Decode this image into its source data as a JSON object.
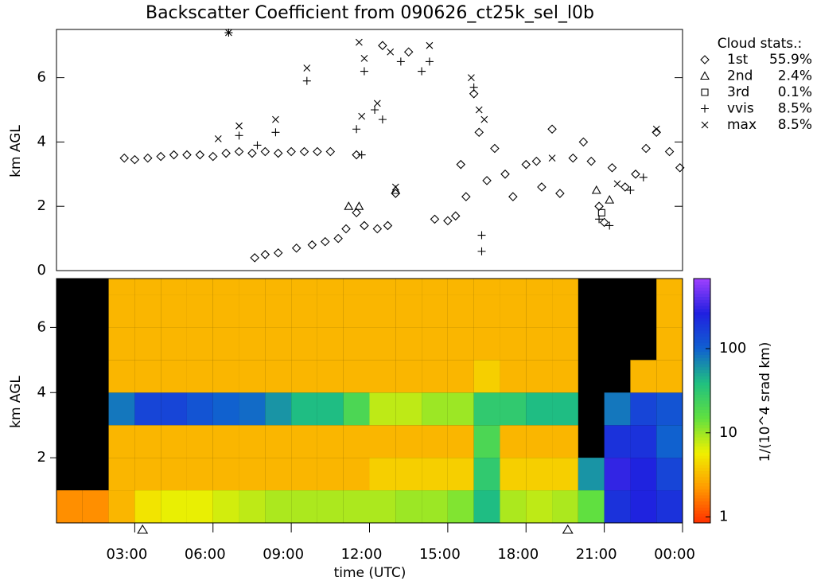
{
  "chart_data": [
    {
      "type": "scatter",
      "title": "Backscatter Coefficient from 090626_ct25k_sel_l0b",
      "ylabel": "km AGL",
      "legend_title": "Cloud stats.:",
      "xlim": [
        0,
        24
      ],
      "ylim": [
        0,
        7.5
      ],
      "yticks": [
        0,
        2,
        4,
        6
      ],
      "series": [
        {
          "name": "1st",
          "stat": "55.9%",
          "marker": "diamond",
          "x": [
            2.6,
            3,
            3.5,
            4,
            4.5,
            5,
            5.5,
            6,
            6.5,
            7,
            7.5,
            8,
            8.5,
            9,
            9.5,
            10,
            10.5,
            11.5,
            7.6,
            8,
            8.5,
            9.2,
            9.8,
            10.3,
            10.8,
            11.1,
            11.5,
            11.8,
            12.3,
            12.7,
            13,
            14.5,
            15,
            15.3,
            15.5,
            15.7,
            16,
            16.2,
            16.5,
            16.8,
            17.2,
            17.5,
            18,
            18.4,
            18.6,
            19,
            19.3,
            19.8,
            20.2,
            20.5,
            20.8,
            21,
            21.3,
            21.8,
            22.2,
            22.6,
            23,
            23.5,
            23.9,
            12.5,
            13.5
          ],
          "y": [
            3.5,
            3.45,
            3.5,
            3.55,
            3.6,
            3.6,
            3.6,
            3.55,
            3.65,
            3.7,
            3.65,
            3.7,
            3.65,
            3.7,
            3.7,
            3.7,
            3.7,
            3.6,
            0.4,
            0.5,
            0.55,
            0.7,
            0.8,
            0.9,
            1.0,
            1.3,
            1.8,
            1.4,
            1.3,
            1.4,
            2.4,
            1.6,
            1.55,
            1.7,
            3.3,
            2.3,
            5.5,
            4.3,
            2.8,
            3.8,
            3.0,
            2.3,
            3.3,
            3.4,
            2.6,
            4.4,
            2.4,
            3.5,
            4.0,
            3.4,
            2.0,
            1.5,
            3.2,
            2.6,
            3.0,
            3.8,
            4.3,
            3.7,
            3.2,
            7.0,
            6.8
          ]
        },
        {
          "name": "2nd",
          "stat": "2.4%",
          "marker": "triangle",
          "x": [
            11.2,
            11.6,
            20.7,
            21.2,
            13
          ],
          "y": [
            2.0,
            2.0,
            2.5,
            2.2,
            2.5
          ]
        },
        {
          "name": "3rd",
          "stat": "0.1%",
          "marker": "square",
          "x": [
            20.9
          ],
          "y": [
            1.8
          ]
        },
        {
          "name": "vvis",
          "stat": "8.5%",
          "marker": "plus",
          "x": [
            6.6,
            9.6,
            11.5,
            11.8,
            12.2,
            12.5,
            13.2,
            14,
            14.3,
            16,
            16.3,
            16.3,
            7,
            8.4,
            21.2,
            22,
            22.5,
            20.8,
            11.7,
            7.7
          ],
          "y": [
            7.4,
            5.9,
            4.4,
            6.2,
            5.0,
            4.7,
            6.5,
            6.2,
            6.5,
            5.7,
            0.6,
            1.1,
            4.2,
            4.3,
            1.4,
            2.5,
            2.9,
            1.6,
            3.6,
            3.9
          ]
        },
        {
          "name": "max",
          "stat": "8.5%",
          "marker": "cross",
          "x": [
            6.6,
            6.2,
            7,
            8.4,
            9.6,
            11.6,
            11.8,
            12.3,
            12.8,
            14.3,
            15.9,
            16.2,
            16.4,
            13,
            19,
            21.5,
            23,
            11.7
          ],
          "y": [
            7.4,
            4.1,
            4.5,
            4.7,
            6.3,
            7.1,
            6.6,
            5.2,
            6.8,
            7.0,
            6.0,
            5.0,
            4.7,
            2.6,
            3.5,
            2.7,
            4.4,
            4.8
          ]
        }
      ]
    },
    {
      "type": "heatmap",
      "ylabel": "km AGL",
      "xlabel": "time (UTC)",
      "xlim": [
        0,
        24
      ],
      "ylim": [
        0,
        7.5
      ],
      "yticks": [
        2,
        4,
        6
      ],
      "xticks": [
        {
          "value": 3,
          "label": "03:00"
        },
        {
          "value": 6,
          "label": "06:00"
        },
        {
          "value": 9,
          "label": "09:00"
        },
        {
          "value": 12,
          "label": "12:00"
        },
        {
          "value": 15,
          "label": "15:00"
        },
        {
          "value": 18,
          "label": "18:00"
        },
        {
          "value": 21,
          "label": "21:00"
        },
        {
          "value": 24,
          "label": "00:00"
        }
      ],
      "xbins": [
        0,
        1,
        2,
        3,
        4,
        5,
        6,
        7,
        8,
        9,
        10,
        11,
        12,
        13,
        14,
        15,
        16,
        17,
        18,
        19,
        20,
        21,
        22,
        23,
        24
      ],
      "ybins": [
        0,
        1,
        2,
        3,
        4,
        5,
        6,
        7,
        7.5
      ],
      "z": [
        [
          2,
          2,
          3,
          5,
          6,
          6,
          7,
          8,
          9,
          9,
          9,
          9,
          9,
          10,
          10,
          12,
          40,
          9,
          8,
          9,
          15,
          200,
          250,
          200
        ],
        [
          null,
          null,
          3,
          3,
          3,
          3,
          3,
          3,
          3,
          3,
          3,
          3,
          4,
          4,
          4,
          4,
          30,
          4,
          4,
          4,
          60,
          300,
          250,
          150
        ],
        [
          null,
          null,
          3,
          3,
          3,
          3,
          3,
          3,
          3,
          3,
          3,
          3,
          3,
          3,
          3,
          3,
          20,
          3,
          3,
          3,
          null,
          200,
          200,
          100
        ],
        [
          null,
          null,
          80,
          150,
          150,
          120,
          100,
          90,
          60,
          40,
          40,
          20,
          8,
          8,
          10,
          10,
          30,
          30,
          40,
          40,
          null,
          80,
          150,
          120
        ],
        [
          null,
          null,
          3,
          3,
          3,
          3,
          3,
          3,
          3,
          3,
          3,
          3,
          3,
          3,
          3,
          3,
          4,
          3,
          3,
          3,
          null,
          null,
          3,
          3
        ],
        [
          null,
          null,
          3,
          3,
          3,
          3,
          3,
          3,
          3,
          3,
          3,
          3,
          3,
          3,
          3,
          3,
          3,
          3,
          3,
          3,
          null,
          null,
          null,
          3
        ],
        [
          null,
          null,
          3,
          3,
          3,
          3,
          3,
          3,
          3,
          3,
          3,
          3,
          3,
          3,
          3,
          3,
          3,
          3,
          3,
          3,
          null,
          null,
          null,
          3
        ],
        [
          null,
          null,
          3,
          3,
          3,
          3,
          3,
          3,
          3,
          3,
          3,
          3,
          3,
          3,
          3,
          3,
          3,
          3,
          3,
          3,
          null,
          null,
          null,
          3
        ]
      ],
      "events_x": [
        3.3,
        19.6
      ],
      "colorbar": {
        "label": "1/(10^4 srad km)",
        "log": true,
        "zlim": [
          0.85,
          680
        ],
        "ticks": [
          1,
          10,
          100
        ],
        "colors": [
          "#ff3000",
          "#ff9a00",
          "#f0f000",
          "#60e040",
          "#20c080",
          "#1060d0",
          "#2020e0",
          "#a040ff"
        ]
      }
    }
  ]
}
